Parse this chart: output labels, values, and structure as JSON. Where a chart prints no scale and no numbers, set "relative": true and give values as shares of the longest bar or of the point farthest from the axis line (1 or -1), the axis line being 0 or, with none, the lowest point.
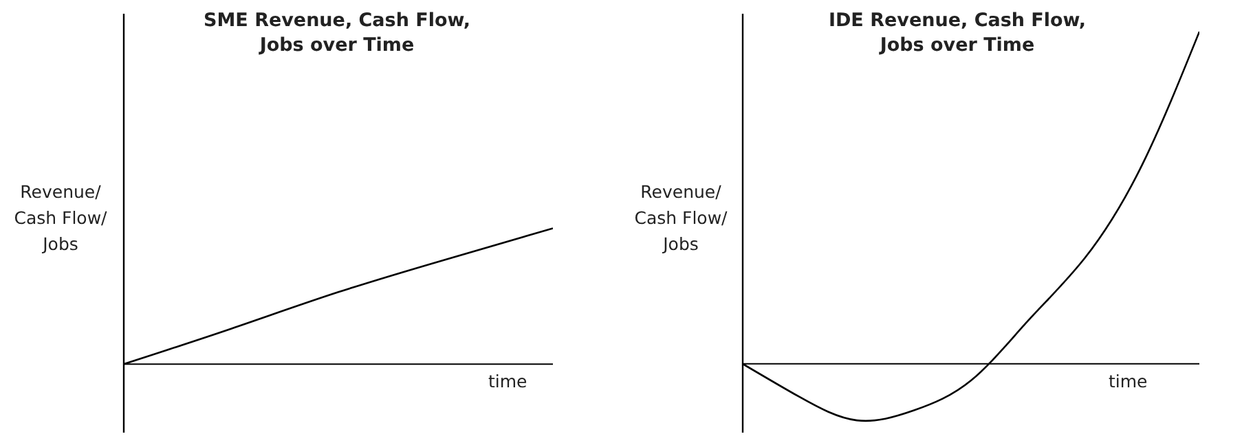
{
  "chart_data": [
    {
      "type": "line",
      "title": "SME Revenue, Cash Flow, Jobs over Time",
      "xlabel": "time",
      "ylabel": "Revenue/ Cash Flow/ Jobs",
      "relative": true,
      "categories": [
        null,
        null,
        null,
        null,
        null
      ],
      "series": [
        {
          "color": "#000000",
          "values": [
            0,
            0.26,
            0.53,
            0.77,
            1
          ]
        }
      ]
    },
    {
      "type": "line",
      "title": "IDE Revenue, Cash Flow, Jobs over Time",
      "xlabel": "time",
      "ylabel": "Revenue/ Cash Flow/ Jobs",
      "relative": true,
      "categories": [
        null,
        null,
        null,
        null,
        null,
        null,
        null,
        null,
        null
      ],
      "series": [
        {
          "color": "#000000",
          "values": [
            0,
            -0.1,
            -0.17,
            -0.14,
            -0.05,
            0.13,
            0.32,
            0.6,
            1
          ]
        }
      ]
    }
  ]
}
